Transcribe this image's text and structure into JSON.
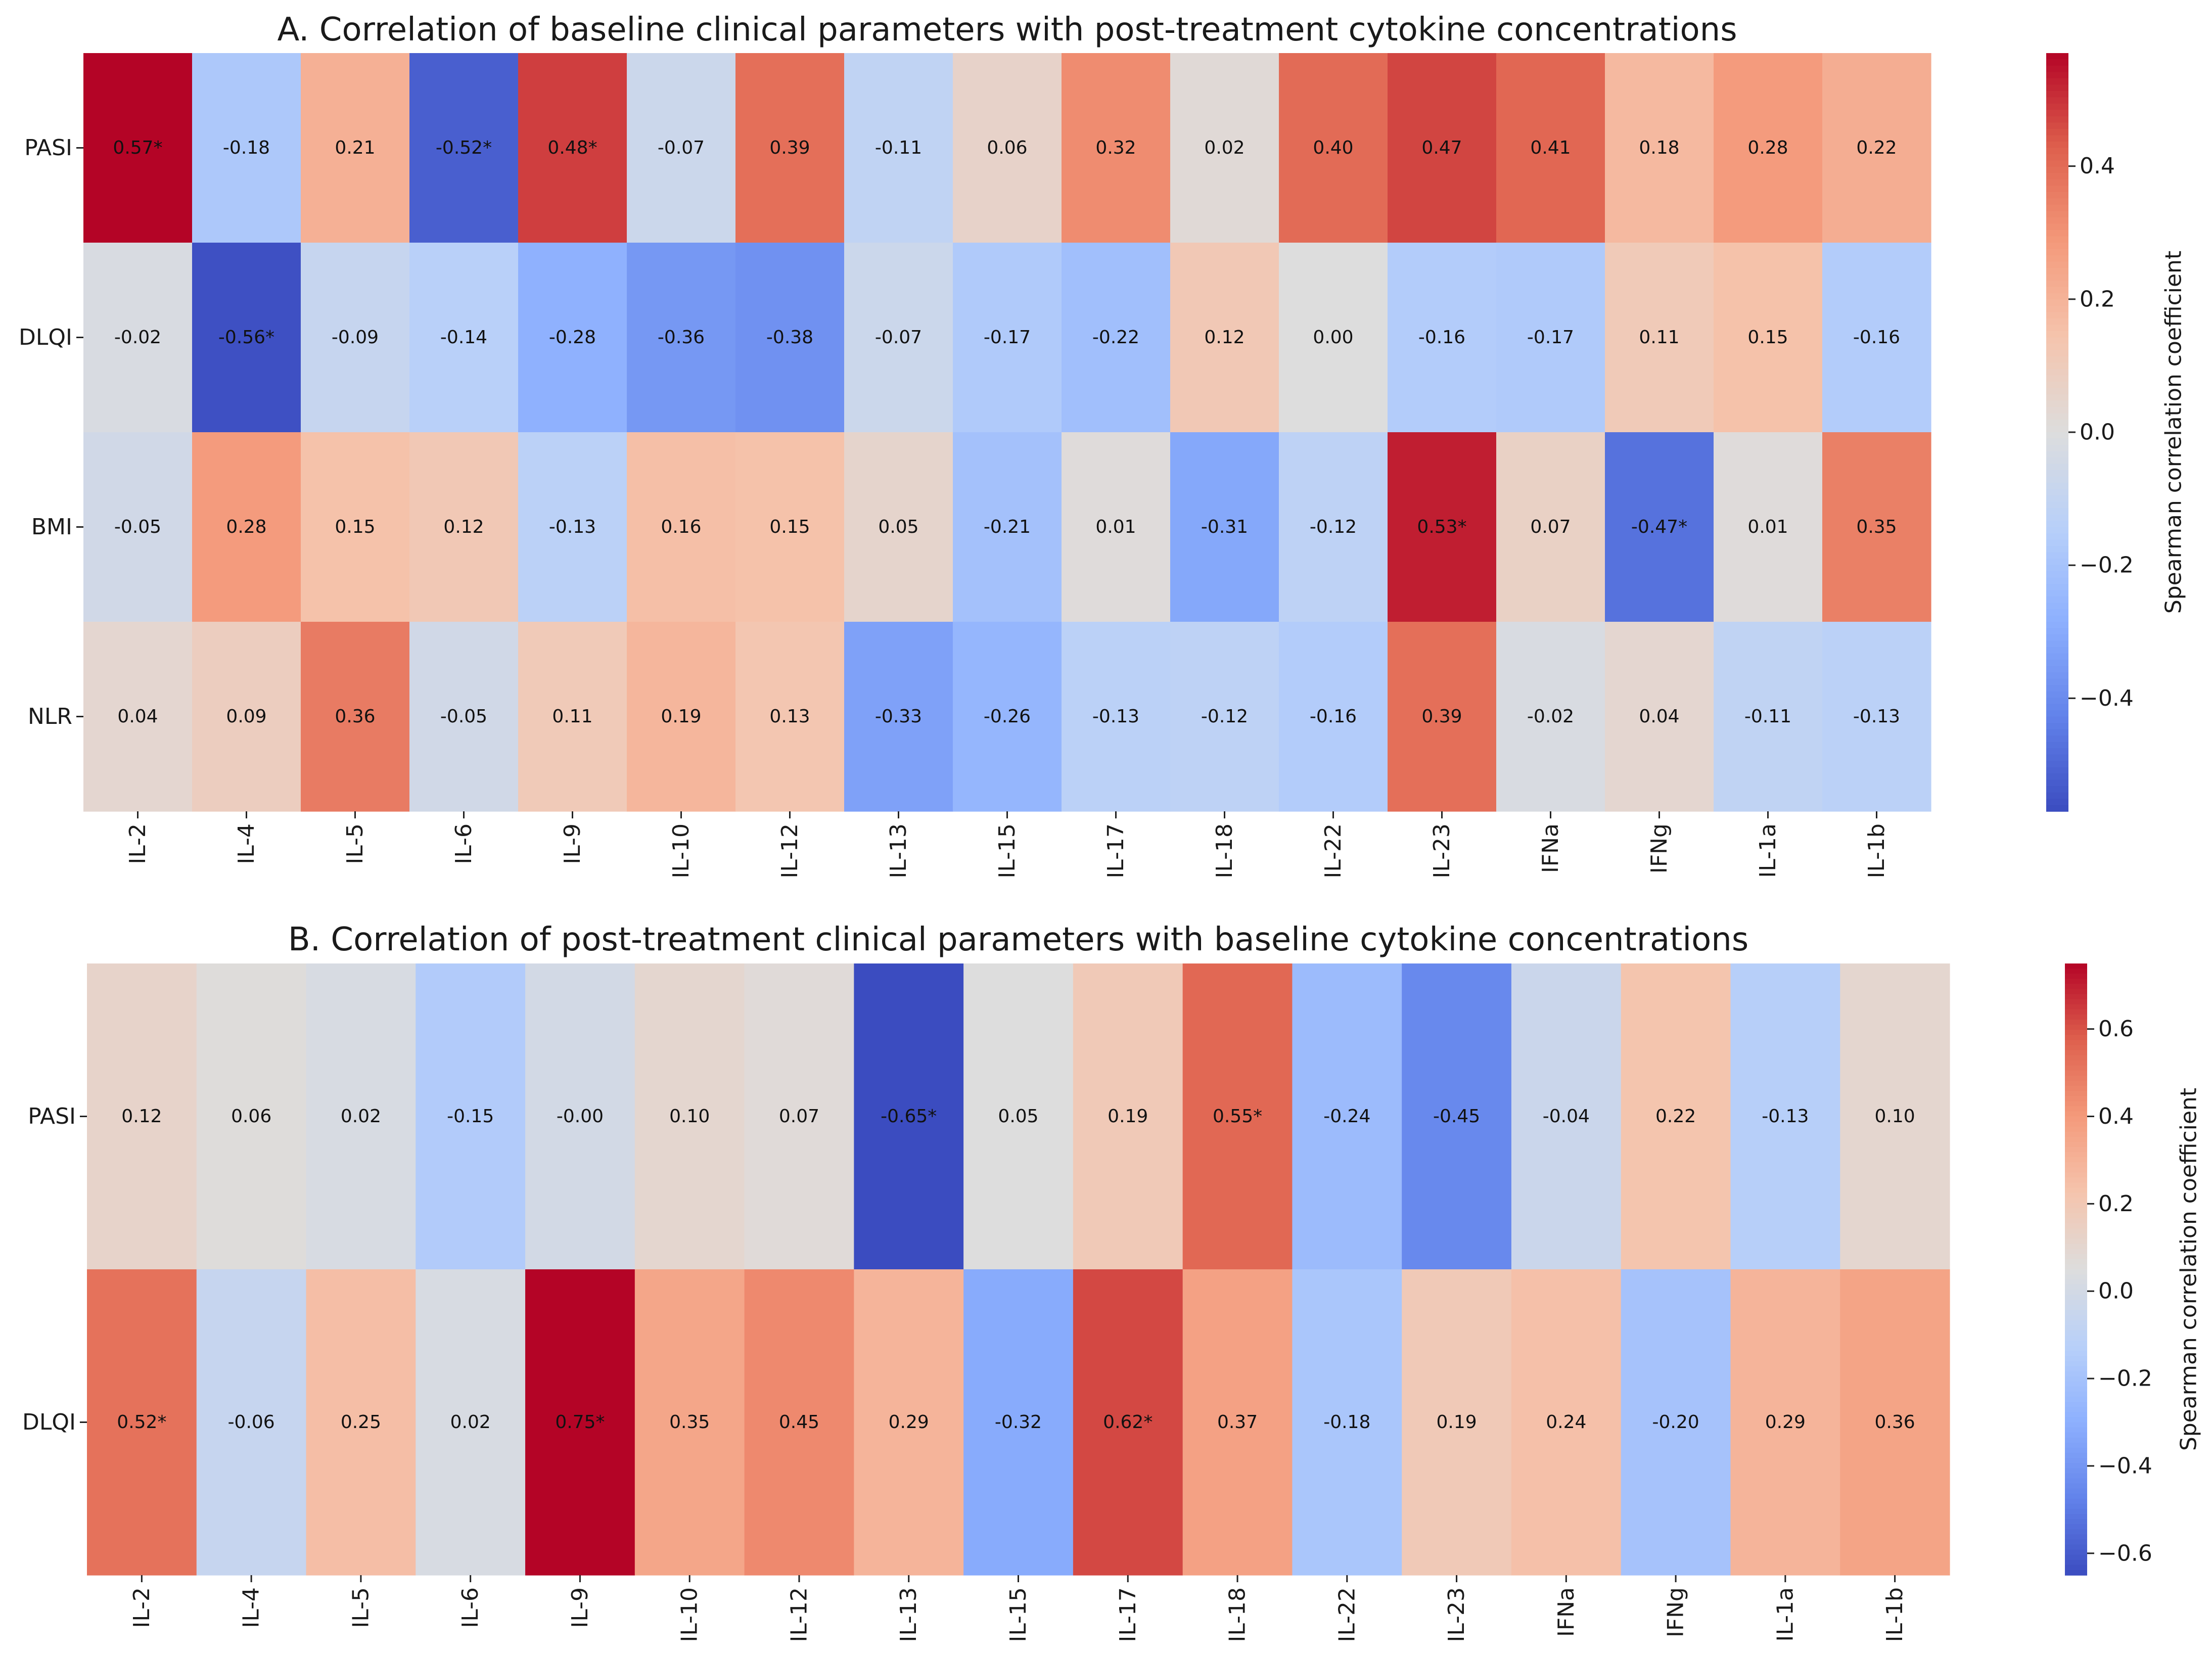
{
  "chart_data": [
    {
      "type": "heatmap",
      "title": "A. Correlation of baseline clinical parameters with post-treatment cytokine concentrations",
      "rows": [
        "PASI",
        "DLQI",
        "BMI",
        "NLR"
      ],
      "columns": [
        "IL-2",
        "IL-4",
        "IL-5",
        "IL-6",
        "IL-9",
        "IL-10",
        "IL-12",
        "IL-13",
        "IL-15",
        "IL-17",
        "IL-18",
        "IL-22",
        "IL-23",
        "IFNa",
        "IFNg",
        "IL-1a",
        "IL-1b"
      ],
      "labels": [
        [
          "0.57*",
          "-0.18",
          "0.21",
          "-0.52*",
          "0.48*",
          "-0.07",
          "0.39",
          "-0.11",
          "0.06",
          "0.32",
          "0.02",
          "0.40",
          "0.47",
          "0.41",
          "0.18",
          "0.28",
          "0.22"
        ],
        [
          "-0.02",
          "-0.56*",
          "-0.09",
          "-0.14",
          "-0.28",
          "-0.36",
          "-0.38",
          "-0.07",
          "-0.17",
          "-0.22",
          "0.12",
          "0.00",
          "-0.16",
          "-0.17",
          "0.11",
          "0.15",
          "-0.16"
        ],
        [
          "-0.05",
          "0.28",
          "0.15",
          "0.12",
          "-0.13",
          "0.16",
          "0.15",
          "0.05",
          "-0.21",
          "0.01",
          "-0.31",
          "-0.12",
          "0.53*",
          "0.07",
          "-0.47*",
          "0.01",
          "0.35"
        ],
        [
          "0.04",
          "0.09",
          "0.36",
          "-0.05",
          "0.11",
          "0.19",
          "0.13",
          "-0.33",
          "-0.26",
          "-0.13",
          "-0.12",
          "-0.16",
          "0.39",
          "-0.02",
          "0.04",
          "-0.11",
          "-0.13"
        ]
      ],
      "vmin": -0.57,
      "vmax": 0.57,
      "colormap": "coolwarm",
      "colorbar": {
        "label": "Spearman correlation coefficient",
        "ticks": [
          -0.4,
          -0.2,
          0.0,
          0.2,
          0.4
        ],
        "tick_labels": [
          "−0.4",
          "−0.2",
          "0.0",
          "0.2",
          "0.4"
        ]
      }
    },
    {
      "type": "heatmap",
      "title": "B. Correlation of post-treatment clinical parameters with baseline cytokine concentrations",
      "rows": [
        "PASI",
        "DLQI"
      ],
      "columns": [
        "IL-2",
        "IL-4",
        "IL-5",
        "IL-6",
        "IL-9",
        "IL-10",
        "IL-12",
        "IL-13",
        "IL-15",
        "IL-17",
        "IL-18",
        "IL-22",
        "IL-23",
        "IFNa",
        "IFNg",
        "IL-1a",
        "IL-1b"
      ],
      "labels": [
        [
          "0.12",
          "0.06",
          "0.02",
          "-0.15",
          "-0.00",
          "0.10",
          "0.07",
          "-0.65*",
          "0.05",
          "0.19",
          "0.55*",
          "-0.24",
          "-0.45",
          "-0.04",
          "0.22",
          "-0.13",
          "0.10"
        ],
        [
          "0.52*",
          "-0.06",
          "0.25",
          "0.02",
          "0.75*",
          "0.35",
          "0.45",
          "0.29",
          "-0.32",
          "0.62*",
          "0.37",
          "-0.18",
          "0.19",
          "0.24",
          "-0.20",
          "0.29",
          "0.36"
        ]
      ],
      "vmin": -0.65,
      "vmax": 0.75,
      "colormap": "coolwarm",
      "colorbar": {
        "label": "Spearman correlation coefficient",
        "ticks": [
          -0.6,
          -0.4,
          -0.2,
          0.0,
          0.2,
          0.4,
          0.6
        ],
        "tick_labels": [
          "−0.6",
          "−0.4",
          "−0.2",
          "0.0",
          "0.2",
          "0.4",
          "0.6"
        ]
      }
    }
  ]
}
